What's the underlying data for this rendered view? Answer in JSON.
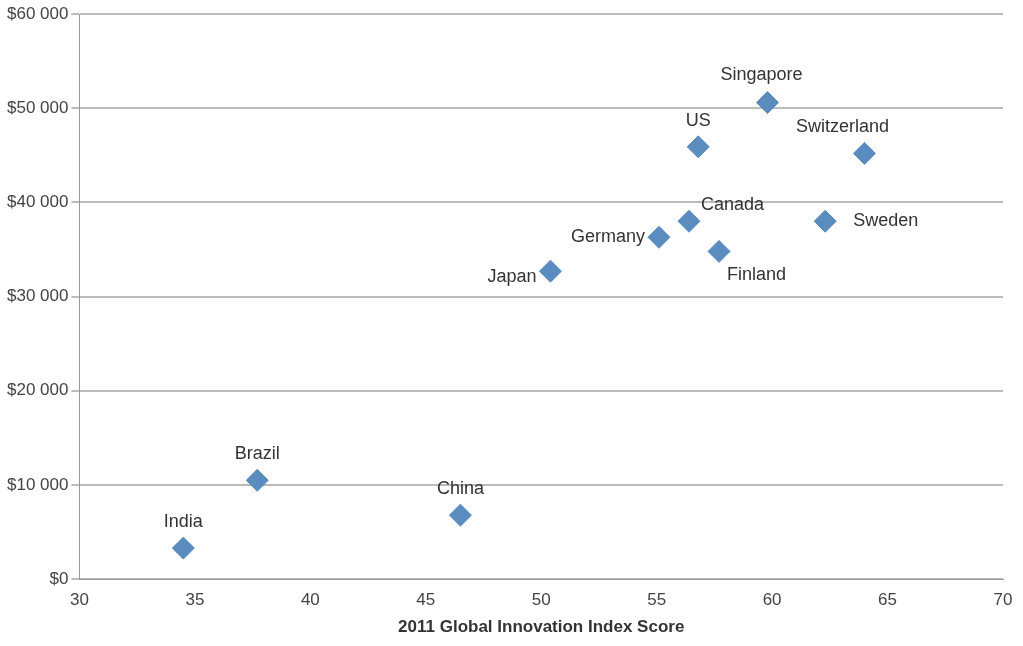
{
  "chart_data": {
    "type": "scatter",
    "xlabel": "2011 Global Innovation Index Score",
    "x": [
      34.5,
      37.7,
      46.5,
      50.4,
      55.1,
      56.4,
      56.8,
      57.7,
      59.8,
      62.3,
      64.0
    ],
    "series": [
      {
        "color": "#5b8cc0",
        "values": [
          3300,
          10500,
          6800,
          32700,
          36300,
          38000,
          45900,
          34800,
          50600,
          38000,
          45200
        ]
      }
    ],
    "annotations": [
      {
        "text": "India",
        "x": 34.5,
        "y": 3300
      },
      {
        "text": "Brazil",
        "x": 37.7,
        "y": 10500
      },
      {
        "text": "China",
        "x": 46.5,
        "y": 6800
      },
      {
        "text": "Japan",
        "x": 50.4,
        "y": 32700
      },
      {
        "text": "Germany",
        "x": 55.1,
        "y": 36300
      },
      {
        "text": "Canada",
        "x": 56.4,
        "y": 38000
      },
      {
        "text": "US",
        "x": 56.8,
        "y": 45900
      },
      {
        "text": "Finland",
        "x": 57.7,
        "y": 34800
      },
      {
        "text": "Singapore",
        "x": 59.8,
        "y": 50600
      },
      {
        "text": "Sweden",
        "x": 62.3,
        "y": 38000
      },
      {
        "text": "Switzerland",
        "x": 64.0,
        "y": 45200
      }
    ],
    "xlim": [
      30,
      70
    ],
    "xticks": [
      30,
      35,
      40,
      45,
      50,
      55,
      60,
      65,
      70
    ],
    "ylim": [
      0,
      60000
    ],
    "yticks": [
      {
        "value": 0,
        "label": "$0"
      },
      {
        "value": 10000,
        "label": "$10 000"
      },
      {
        "value": 20000,
        "label": "$20 000"
      },
      {
        "value": 30000,
        "label": "$30 000"
      },
      {
        "value": 40000,
        "label": "$40 000"
      },
      {
        "value": 50000,
        "label": "$50 000"
      },
      {
        "value": 60000,
        "label": "$60 000"
      }
    ],
    "grid": "y",
    "legend": false,
    "marker": "diamond"
  }
}
